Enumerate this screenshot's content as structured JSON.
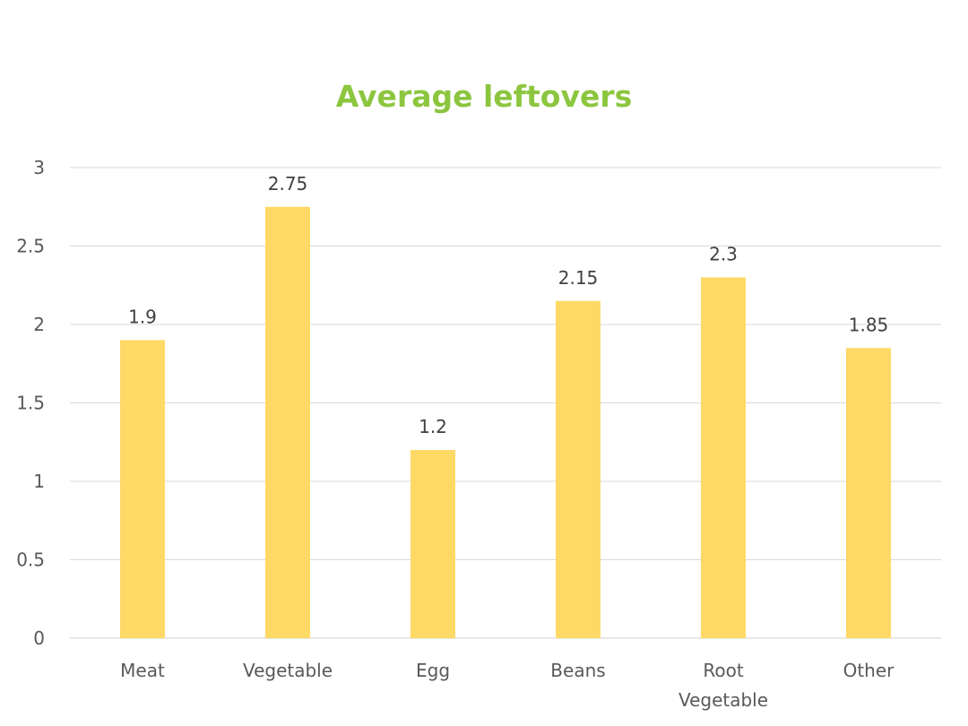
{
  "chart_data": {
    "type": "bar",
    "title": "Average leftovers",
    "categories": [
      "Meat",
      "Vegetable",
      "Egg",
      "Beans",
      "Root Vegetable",
      "Other"
    ],
    "category_lines": [
      [
        "Meat"
      ],
      [
        "Vegetable"
      ],
      [
        "Egg"
      ],
      [
        "Beans"
      ],
      [
        "Root",
        "Vegetable"
      ],
      [
        "Other"
      ]
    ],
    "values": [
      1.9,
      2.75,
      1.2,
      2.15,
      2.3,
      1.85
    ],
    "data_labels": [
      "1.9",
      "2.75",
      "1.2",
      "2.15",
      "2.3",
      "1.85"
    ],
    "yticks": [
      "0",
      "0.5",
      "1",
      "1.5",
      "2",
      "2.5",
      "3"
    ],
    "ylim": [
      0,
      3
    ],
    "grid": true,
    "legend": "none",
    "xlabel": "",
    "ylabel": "",
    "colors": {
      "bar": "#FFD966",
      "title": "#8CC63F",
      "grid": "#D9D9D9"
    }
  }
}
